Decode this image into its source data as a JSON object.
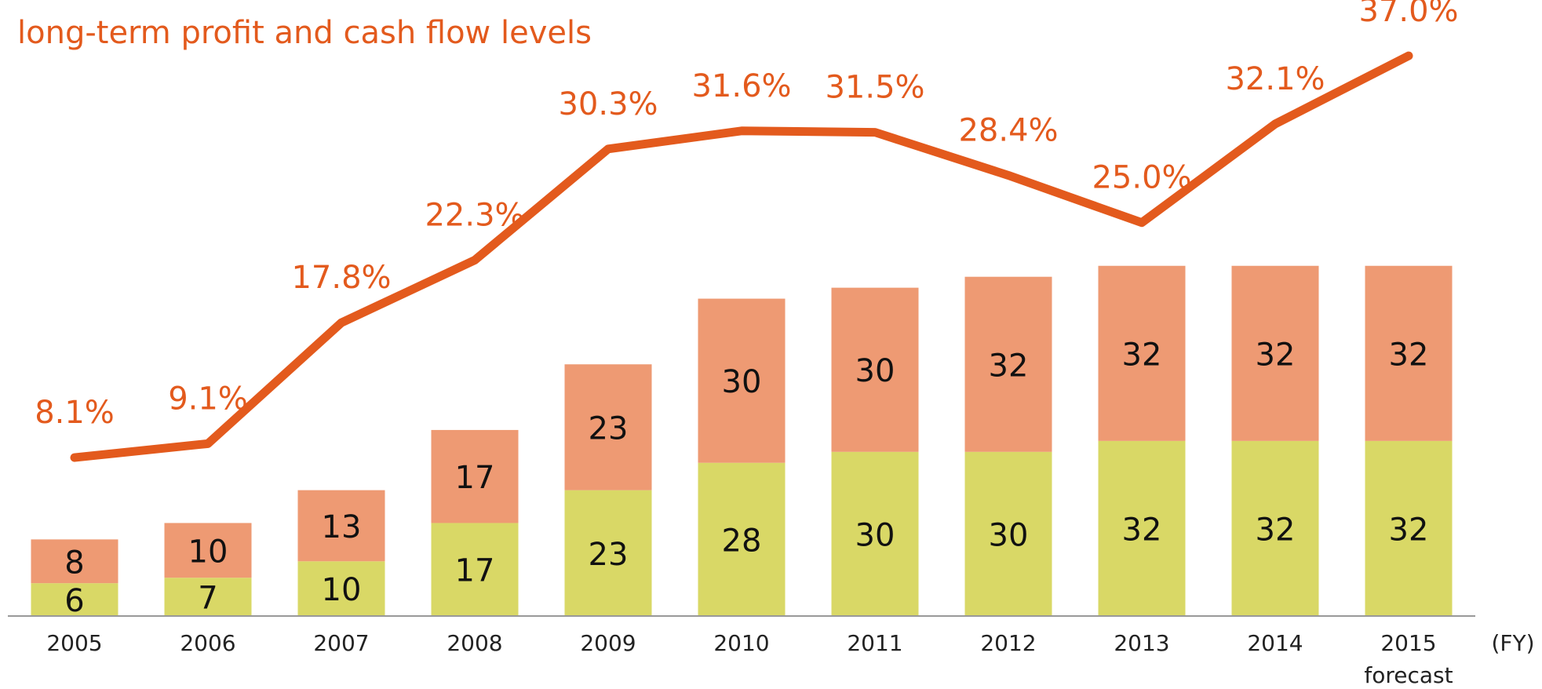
{
  "chart_data": {
    "type": "bar_line",
    "title": "long-term profit and cash flow levels",
    "x_label": "(FY)",
    "categories": [
      "2005",
      "2006",
      "2007",
      "2008",
      "2009",
      "2010",
      "2011",
      "2012",
      "2013",
      "2014",
      "2015"
    ],
    "category_note": "forecast",
    "series": [
      {
        "color": "#d9d866",
        "values": [
          6,
          7,
          10,
          17,
          23,
          28,
          30,
          30,
          32,
          32,
          32
        ]
      },
      {
        "color": "#ee9a73",
        "values": [
          8,
          10,
          13,
          17,
          23,
          30,
          30,
          32,
          32,
          32,
          32
        ]
      },
      {
        "color": "#e35a1d",
        "axis": "y2",
        "values": [
          8.1,
          9.1,
          17.8,
          22.3,
          30.3,
          31.6,
          31.5,
          28.4,
          25.0,
          32.1,
          37.0
        ],
        "value_labels": [
          "8.1%",
          "9.1%",
          "17.8%",
          "22.3%",
          "30.3%",
          "31.6%",
          "31.5%",
          "28.4%",
          "25.0%",
          "32.1%",
          "37.0%"
        ]
      }
    ],
    "ylim": [
      0,
      110
    ],
    "y2lim": [
      -3.3,
      40
    ]
  }
}
